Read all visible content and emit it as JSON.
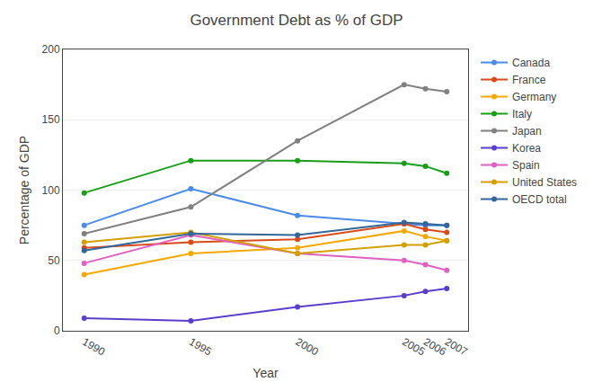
{
  "chart_data": {
    "type": "line",
    "title": "Government Debt as % of GDP",
    "xlabel": "Year",
    "ylabel": "Percentage of GDP",
    "x": [
      1990,
      1995,
      2000,
      2005,
      2006,
      2007
    ],
    "series": [
      {
        "name": "Canada",
        "values": [
          75,
          101,
          82,
          76,
          75,
          75
        ],
        "color": "#4C8BE8"
      },
      {
        "name": "France",
        "values": [
          59,
          63,
          65,
          76,
          72,
          70
        ],
        "color": "#D94B1A"
      },
      {
        "name": "Germany",
        "values": [
          40,
          55,
          59,
          71,
          67,
          64
        ],
        "color": "#F5A800"
      },
      {
        "name": "Italy",
        "values": [
          98,
          121,
          121,
          119,
          117,
          112
        ],
        "color": "#1A9E1A"
      },
      {
        "name": "Japan",
        "values": [
          69,
          88,
          135,
          175,
          172,
          170
        ],
        "color": "#808080"
      },
      {
        "name": "Korea",
        "values": [
          9,
          7,
          17,
          25,
          28,
          30
        ],
        "color": "#5B3FCC"
      },
      {
        "name": "Spain",
        "values": [
          48,
          68,
          55,
          50,
          47,
          43
        ],
        "color": "#E060C0"
      },
      {
        "name": "United States",
        "values": [
          63,
          70,
          55,
          61,
          61,
          64
        ],
        "color": "#D4A000"
      },
      {
        "name": "OECD total",
        "values": [
          57,
          69,
          68,
          77,
          76,
          75
        ],
        "color": "#336699"
      }
    ],
    "xlim": [
      1989,
      2008
    ],
    "xticks": [
      1990,
      1995,
      2000,
      2005,
      2006,
      2007
    ],
    "ylim": [
      0,
      200
    ],
    "yticks": [
      0,
      50,
      100,
      150,
      200
    ],
    "grid": "y",
    "legend": "right",
    "marker": "circle"
  }
}
